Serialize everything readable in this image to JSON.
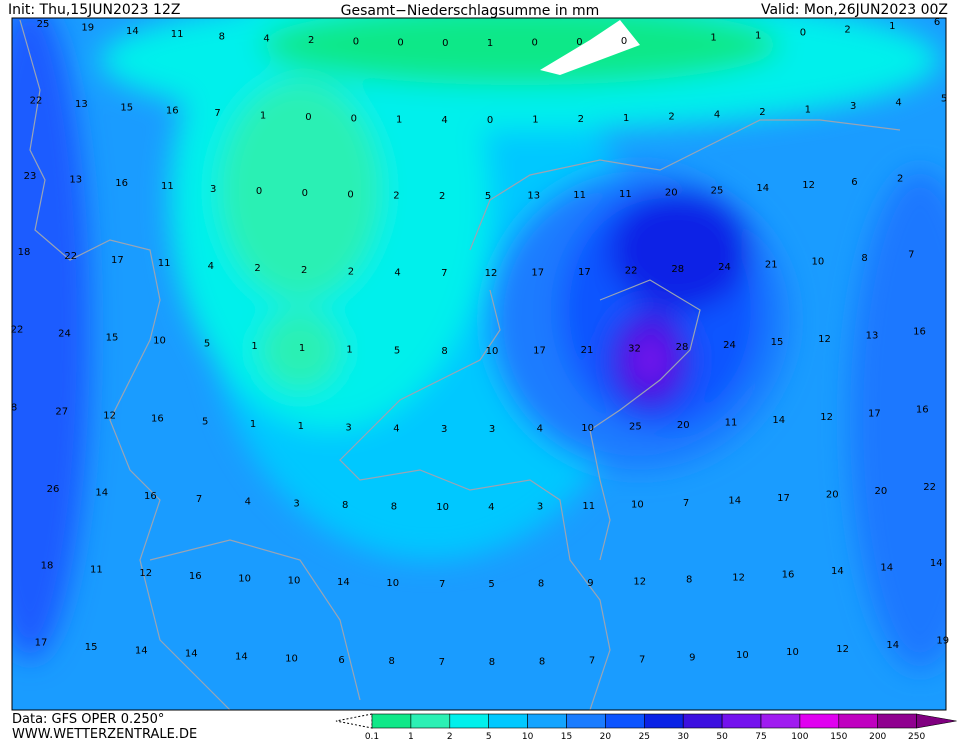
{
  "header": {
    "init": "Init: Thu,15JUN2023 12Z",
    "title": "Gesamt−Niederschlagsumme in mm",
    "valid": "Valid: Mon,26JUN2023 00Z"
  },
  "footer": {
    "data": "Data: GFS OPER 0.250°",
    "site": "WWW.WETTERZENTRALE.DE"
  },
  "map": {
    "rows": [
      [
        25,
        19,
        14,
        11,
        8,
        4,
        2,
        0,
        0,
        0,
        1,
        0,
        0,
        0,
        1,
        1,
        0,
        2,
        1,
        6
      ],
      [
        22,
        13,
        15,
        16,
        7,
        1,
        0,
        0,
        1,
        4,
        0,
        1,
        2,
        1,
        2,
        4,
        2,
        1,
        3,
        4,
        5
      ],
      [
        23,
        13,
        16,
        11,
        3,
        0,
        0,
        0,
        2,
        2,
        5,
        13,
        11,
        11,
        20,
        25,
        14,
        12,
        6,
        2
      ],
      [
        18,
        22,
        17,
        11,
        4,
        2,
        2,
        2,
        4,
        7,
        12,
        17,
        17,
        22,
        28,
        24,
        21,
        10,
        8,
        7
      ],
      [
        22,
        24,
        15,
        10,
        5,
        1,
        1,
        1,
        5,
        8,
        10,
        17,
        21,
        32,
        28,
        24,
        15,
        12,
        13,
        16
      ],
      [
        8,
        27,
        12,
        16,
        5,
        1,
        1,
        3,
        4,
        3,
        3,
        4,
        10,
        25,
        20,
        11,
        14,
        12,
        17,
        16
      ],
      [
        26,
        14,
        16,
        7,
        4,
        3,
        8,
        8,
        10,
        4,
        3,
        11,
        10,
        7,
        14,
        17,
        20,
        20,
        22
      ],
      [
        18,
        11,
        12,
        16,
        10,
        10,
        14,
        10,
        7,
        5,
        8,
        9,
        12,
        8,
        12,
        16,
        14,
        14,
        14
      ],
      [
        17,
        15,
        14,
        14,
        14,
        10,
        6,
        8,
        7,
        8,
        8,
        7,
        7,
        9,
        10,
        10,
        12,
        14,
        19
      ]
    ]
  },
  "legend": {
    "ticks": [
      0.1,
      1,
      2,
      5,
      10,
      15,
      20,
      25,
      30,
      50,
      75,
      100,
      150,
      200,
      250
    ],
    "colors": [
      "#10e888",
      "#2cf0b4",
      "#00f0ec",
      "#00c8ff",
      "#14a4ff",
      "#1a7cff",
      "#0c54ff",
      "#0a22e6",
      "#3c10e0",
      "#7412ee",
      "#a01cf0",
      "#e000f0",
      "#c000c0",
      "#900090"
    ]
  }
}
